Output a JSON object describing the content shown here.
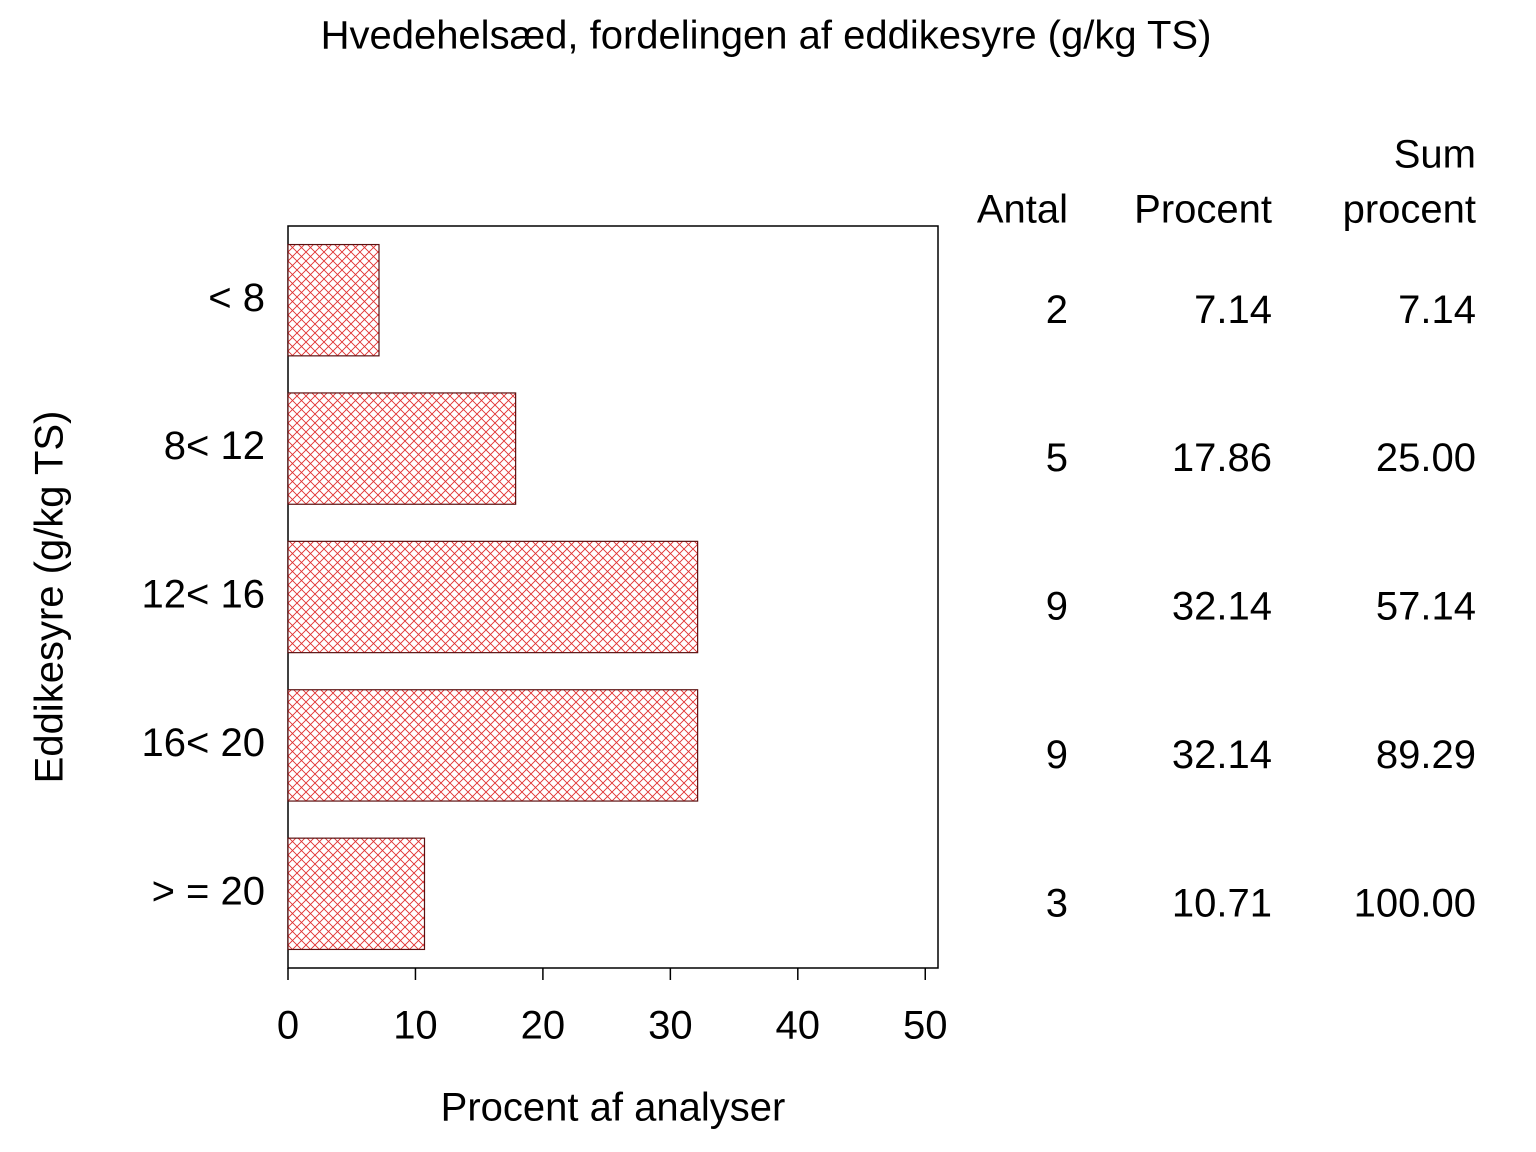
{
  "chart_data": {
    "type": "bar",
    "orientation": "horizontal",
    "title": "Hvedehelsæd, fordelingen af eddikesyre (g/kg TS)",
    "x_label": "Procent af analyser",
    "y_label": "Eddikesyre (g/kg TS)",
    "categories": [
      "< 8",
      "8< 12",
      "12< 16",
      "16< 20",
      "> = 20"
    ],
    "values": [
      7.14,
      17.86,
      32.14,
      32.14,
      10.71
    ],
    "color": "#e03030",
    "xlim": [
      0,
      51
    ],
    "xticks": [
      0,
      10,
      20,
      30,
      40,
      50
    ],
    "table": {
      "headers": [
        [
          "Antal"
        ],
        [
          "Procent"
        ],
        [
          "Sum",
          "procent"
        ]
      ],
      "counts": [
        2,
        5,
        9,
        9,
        3
      ],
      "cumulative": [
        7.14,
        25,
        57.14,
        89.29,
        100
      ],
      "cumulative_labels": [
        "7.14",
        "25.00",
        "57.14",
        "89.29",
        "100.00"
      ]
    }
  }
}
